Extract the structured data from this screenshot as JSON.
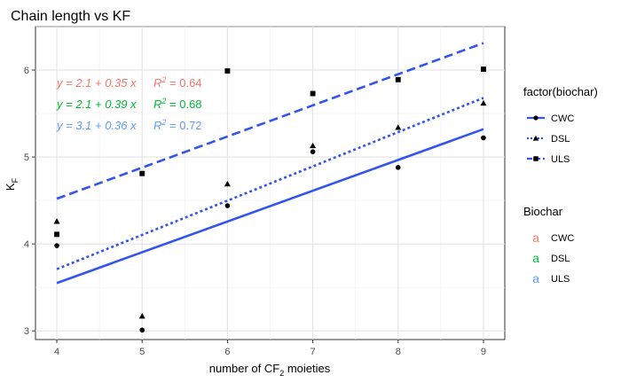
{
  "chart_data": {
    "type": "scatter",
    "title": "Chain length vs KF",
    "xlabel": {
      "pre": "number of CF",
      "sub": "2",
      "post": " moieties"
    },
    "ylabel": {
      "main": "K",
      "sub": "F"
    },
    "xlim": [
      3.75,
      9.25
    ],
    "ylim": [
      2.9,
      6.5
    ],
    "xticks": [
      4,
      5,
      6,
      7,
      8,
      9
    ],
    "yticks": [
      3,
      4,
      5,
      6
    ],
    "grid": true,
    "series": [
      {
        "name": "CWC",
        "shape": "circle",
        "x": [
          4,
          5,
          6,
          7,
          8,
          9
        ],
        "y": [
          3.98,
          3.01,
          4.44,
          5.06,
          4.88,
          5.22
        ]
      },
      {
        "name": "DSL",
        "shape": "triangle",
        "x": [
          4,
          5,
          6,
          7,
          8,
          9
        ],
        "y": [
          4.26,
          3.17,
          4.69,
          5.13,
          5.34,
          5.62
        ]
      },
      {
        "name": "ULS",
        "shape": "square",
        "x": [
          4,
          5,
          6,
          7,
          8,
          9
        ],
        "y": [
          4.11,
          4.81,
          5.99,
          5.73,
          5.89,
          6.01
        ]
      }
    ],
    "fit_lines": [
      {
        "series": "CWC",
        "linetype": "solid",
        "x": [
          4,
          9
        ],
        "y": [
          3.55,
          5.32
        ]
      },
      {
        "series": "DSL",
        "linetype": "dotted",
        "x": [
          4,
          9
        ],
        "y": [
          3.71,
          5.68
        ]
      },
      {
        "series": "ULS",
        "linetype": "dashed",
        "x": [
          4,
          9
        ],
        "y": [
          4.52,
          6.31
        ]
      }
    ],
    "line_color": "#3355ee",
    "point_color": "#000000",
    "annotations": [
      {
        "biochar": "CWC",
        "color": "#f8766d",
        "equation": "y = 2.1 + 0.35 x",
        "r2_label": "R",
        "r2_sup": "2",
        "r2_value": " = 0.64"
      },
      {
        "biochar": "DSL",
        "color": "#00ba38",
        "equation": "y = 2.1 + 0.39 x",
        "r2_label": "R",
        "r2_sup": "2",
        "r2_value": " = 0.68"
      },
      {
        "biochar": "ULS",
        "color": "#619cff",
        "equation": "y = 3.1 + 0.36 x",
        "r2_label": "R",
        "r2_sup": "2",
        "r2_value": " = 0.72"
      }
    ],
    "legends": [
      {
        "title": "factor(biochar)",
        "key_type": "line",
        "items": [
          {
            "label": "CWC",
            "linetype": "solid",
            "shape": "circle"
          },
          {
            "label": "DSL",
            "linetype": "dotted",
            "shape": "triangle"
          },
          {
            "label": "ULS",
            "linetype": "dashed",
            "shape": "square"
          }
        ]
      },
      {
        "title": "Biochar",
        "key_type": "text",
        "key_glyph": "a",
        "items": [
          {
            "label": "CWC",
            "color": "#f8766d"
          },
          {
            "label": "DSL",
            "color": "#00ba38"
          },
          {
            "label": "ULS",
            "color": "#619cff"
          }
        ]
      }
    ],
    "legend_position": "right"
  }
}
